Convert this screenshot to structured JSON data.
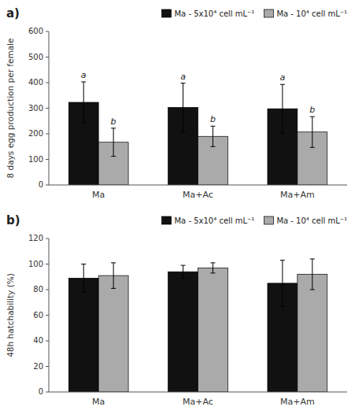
{
  "chart_data": [
    {
      "type": "bar",
      "title": "a)",
      "ylabel": "8 days egg production per female",
      "categories": [
        "Ma",
        "Ma+Ac",
        "Ma+Am"
      ],
      "series": [
        {
          "name": "Ma - 5x10⁴ cell mL⁻¹",
          "color": "#111111",
          "values": [
            323,
            303,
            298
          ],
          "errors": [
            80,
            95,
            95
          ],
          "annotations": [
            "a",
            "a",
            "a"
          ]
        },
        {
          "name": "Ma - 10⁴ cell mL⁻¹",
          "color": "#aaaaaa",
          "values": [
            167,
            190,
            207
          ],
          "errors": [
            55,
            40,
            60
          ],
          "annotations": [
            "b",
            "b",
            "b"
          ]
        }
      ],
      "ylim": [
        0,
        600
      ],
      "yticks": [
        0,
        100,
        200,
        300,
        400,
        500,
        600
      ],
      "grid": false,
      "legend": "upper right"
    },
    {
      "type": "bar",
      "title": "b)",
      "ylabel": "48h hatchability (%)",
      "categories": [
        "Ma",
        "Ma+Ac",
        "Ma+Am"
      ],
      "series": [
        {
          "name": "Ma - 5x10⁴ cell mL⁻¹",
          "color": "#111111",
          "values": [
            89,
            94,
            85
          ],
          "errors": [
            11,
            5,
            18
          ]
        },
        {
          "name": "Ma - 10⁴ cell mL⁻¹",
          "color": "#aaaaaa",
          "values": [
            91,
            97,
            92
          ],
          "errors": [
            10,
            4,
            12
          ]
        }
      ],
      "ylim": [
        0,
        120
      ],
      "yticks": [
        0,
        20,
        40,
        60,
        80,
        100,
        120
      ],
      "grid": false,
      "legend": "upper right"
    }
  ]
}
